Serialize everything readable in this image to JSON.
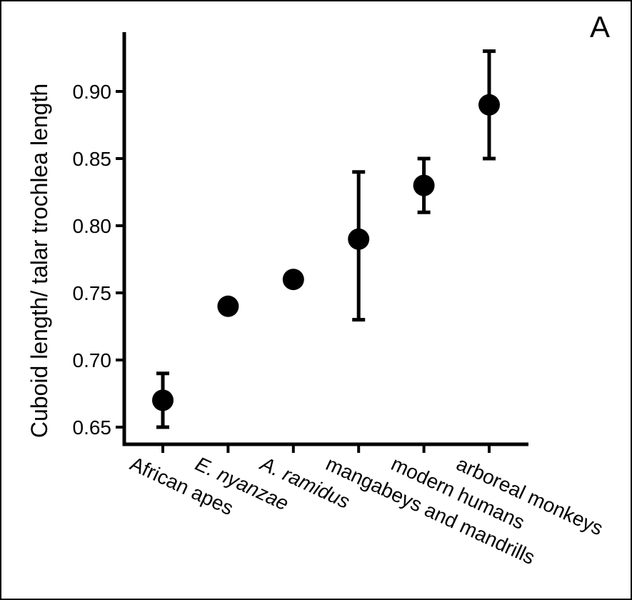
{
  "chart_data": {
    "type": "scatter",
    "panel_label": "A",
    "title": "",
    "xlabel": "",
    "ylabel": "Cuboid length/ talar trochlea length",
    "ylim": [
      0.64,
      0.945
    ],
    "yticks": [
      "0.65",
      "0.70",
      "0.75",
      "0.80",
      "0.85",
      "0.90"
    ],
    "grid": false,
    "legend": "none",
    "marker_color": "#000000",
    "categories": [
      "African apes",
      "E. nyanzae",
      "A. ramidus",
      "mangabeys and mandrills",
      "modern humans",
      "arboreal monkeys"
    ],
    "italic_categories": [
      "E. nyanzae",
      "A. ramidus"
    ],
    "points": [
      {
        "category": "African apes",
        "value": 0.67,
        "low": 0.65,
        "high": 0.69
      },
      {
        "category": "E. nyanzae",
        "value": 0.74,
        "low": null,
        "high": null
      },
      {
        "category": "A. ramidus",
        "value": 0.76,
        "low": null,
        "high": null
      },
      {
        "category": "mangabeys and mandrills",
        "value": 0.79,
        "low": 0.73,
        "high": 0.84
      },
      {
        "category": "modern humans",
        "value": 0.83,
        "low": 0.81,
        "high": 0.85
      },
      {
        "category": "arboreal monkeys",
        "value": 0.89,
        "low": 0.85,
        "high": 0.93
      }
    ]
  }
}
